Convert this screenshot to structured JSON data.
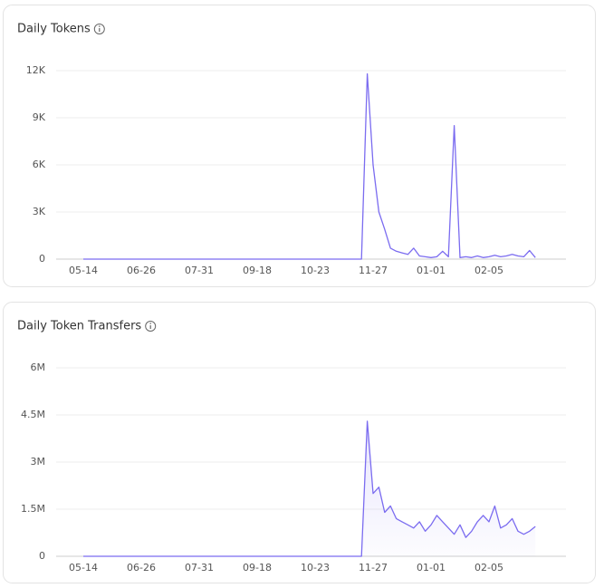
{
  "chart_data": [
    {
      "type": "line",
      "title": "Daily Tokens",
      "color": "#7b6cf0",
      "grid": true,
      "categories": [
        "05-14",
        null,
        null,
        null,
        null,
        null,
        null,
        null,
        null,
        null,
        "06-26",
        null,
        null,
        null,
        null,
        null,
        null,
        null,
        null,
        null,
        "07-31",
        null,
        null,
        null,
        null,
        null,
        null,
        null,
        null,
        null,
        "09-18",
        null,
        null,
        null,
        null,
        null,
        null,
        null,
        null,
        null,
        "10-23",
        null,
        null,
        null,
        null,
        null,
        null,
        null,
        null,
        null,
        "11-27",
        null,
        null,
        null,
        null,
        null,
        null,
        null,
        null,
        null,
        "01-01",
        null,
        null,
        null,
        null,
        null,
        null,
        null,
        null,
        null,
        "02-05",
        null,
        null,
        null,
        null,
        null,
        null,
        null,
        null
      ],
      "values": [
        0,
        0,
        0,
        0,
        0,
        0,
        0,
        0,
        0,
        0,
        0,
        0,
        0,
        0,
        0,
        0,
        0,
        0,
        0,
        0,
        0,
        0,
        0,
        0,
        0,
        0,
        0,
        0,
        0,
        0,
        0,
        0,
        0,
        0,
        0,
        0,
        0,
        0,
        0,
        0,
        0,
        0,
        0,
        0,
        0,
        0,
        0,
        0,
        0,
        11800,
        6000,
        3000,
        1900,
        700,
        500,
        400,
        300,
        700,
        200,
        150,
        100,
        150,
        500,
        150,
        8500,
        100,
        150,
        100,
        200,
        100,
        150,
        250,
        150,
        200,
        300,
        200,
        150,
        550,
        100
      ],
      "ylim": [
        0,
        12000
      ],
      "yticks": [
        0,
        {
          "value": 3000,
          "label": "3K"
        },
        {
          "value": 6000,
          "label": "6K"
        },
        {
          "value": 9000,
          "label": "9K"
        },
        {
          "value": 12000,
          "label": "12K"
        }
      ]
    },
    {
      "type": "area",
      "title": "Daily Token Transfers",
      "color": "#7b6cf0",
      "grid": true,
      "categories": [
        "05-14",
        null,
        null,
        null,
        null,
        null,
        null,
        null,
        null,
        null,
        "06-26",
        null,
        null,
        null,
        null,
        null,
        null,
        null,
        null,
        null,
        "07-31",
        null,
        null,
        null,
        null,
        null,
        null,
        null,
        null,
        null,
        "09-18",
        null,
        null,
        null,
        null,
        null,
        null,
        null,
        null,
        null,
        "10-23",
        null,
        null,
        null,
        null,
        null,
        null,
        null,
        null,
        null,
        "11-27",
        null,
        null,
        null,
        null,
        null,
        null,
        null,
        null,
        null,
        "01-01",
        null,
        null,
        null,
        null,
        null,
        null,
        null,
        null,
        null,
        "02-05",
        null,
        null,
        null,
        null,
        null,
        null,
        null,
        null
      ],
      "values": [
        0,
        0,
        0,
        0,
        0,
        0,
        0,
        0,
        0,
        0,
        0,
        0,
        0,
        0,
        0,
        0,
        0,
        0,
        0,
        0,
        0,
        0,
        0,
        0,
        0,
        0,
        0,
        0,
        0,
        0,
        0,
        0,
        0,
        0,
        0,
        0,
        0,
        0,
        0,
        0,
        0,
        0,
        0,
        0,
        0,
        0,
        0,
        0,
        0,
        4300000,
        2000000,
        2200000,
        1400000,
        1600000,
        1200000,
        1100000,
        1000000,
        900000,
        1100000,
        800000,
        1000000,
        1300000,
        1100000,
        900000,
        700000,
        1000000,
        600000,
        800000,
        1100000,
        1300000,
        1100000,
        1600000,
        900000,
        1000000,
        1200000,
        800000,
        700000,
        800000,
        950000
      ],
      "ylim": [
        0,
        6000000
      ],
      "yticks": [
        0,
        {
          "value": 1500000,
          "label": "1.5M"
        },
        {
          "value": 3000000,
          "label": "3M"
        },
        {
          "value": 4500000,
          "label": "4.5M"
        },
        {
          "value": 6000000,
          "label": "6M"
        }
      ]
    }
  ]
}
